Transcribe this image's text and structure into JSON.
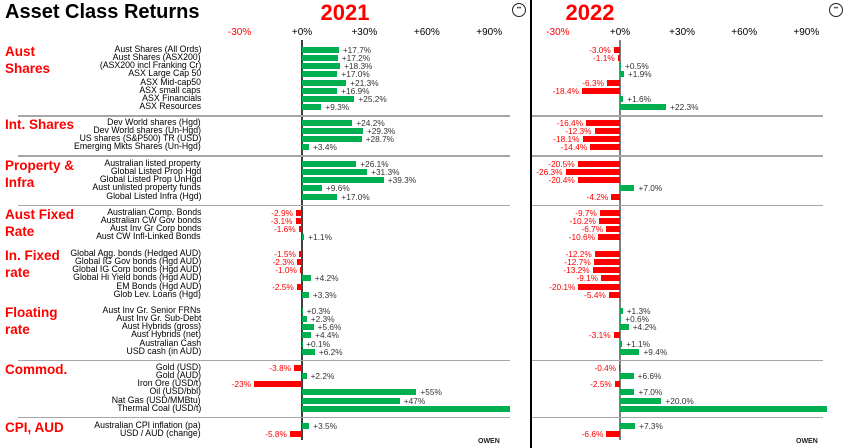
{
  "title": "Asset Class Returns",
  "footer": "OWEN",
  "icons": [
    "face-logo-icon"
  ],
  "colors": {
    "positive": "#00b050",
    "negative": "#ff0000",
    "group_label": "#ff0000"
  },
  "chart_data": {
    "type": "bar",
    "orientation": "horizontal",
    "panels": [
      {
        "year": "2021",
        "ticks": [
          "-30%",
          "+0%",
          "+30%",
          "+60%",
          "+90%"
        ],
        "xlim": [
          -43,
          100
        ]
      },
      {
        "year": "2022",
        "ticks": [
          "-30%",
          "+0%",
          "+30%",
          "+60%",
          "+90%"
        ],
        "xlim": [
          -43,
          100
        ]
      }
    ],
    "groups": [
      {
        "name": "Aust Shares",
        "separator_after": true,
        "items": [
          {
            "label": "Aust Shares (All Ords)",
            "values": [
              17.7,
              -3.0
            ],
            "labels": [
              "+17.7%",
              "-3.0%"
            ]
          },
          {
            "label": "Aust Shares (ASX200)",
            "values": [
              17.2,
              -1.1
            ],
            "labels": [
              "+17.2%",
              "-1.1%"
            ]
          },
          {
            "label": "(ASX200 incl Franking Cr)",
            "values": [
              18.3,
              0.5
            ],
            "labels": [
              "+18.3%",
              "+0.5%"
            ]
          },
          {
            "label": "ASX Large Cap 50",
            "values": [
              17.0,
              1.9
            ],
            "labels": [
              "+17.0%",
              "+1.9%"
            ]
          },
          {
            "label": "ASX Mid-cap50",
            "values": [
              21.3,
              -6.3
            ],
            "labels": [
              "+21.3%",
              "-6.3%"
            ]
          },
          {
            "label": "ASX small caps",
            "values": [
              16.9,
              -18.4
            ],
            "labels": [
              "+16.9%",
              "-18.4%"
            ]
          },
          {
            "label": "ASX Financials",
            "values": [
              25.2,
              1.6
            ],
            "labels": [
              "+25.2%",
              "+1.6%"
            ]
          },
          {
            "label": "ASX Resources",
            "values": [
              9.3,
              22.3
            ],
            "labels": [
              "+9.3%",
              "+22.3%"
            ]
          }
        ]
      },
      {
        "name": "Int. Shares",
        "separator_after": true,
        "items": [
          {
            "label": "Dev World shares (Hgd)",
            "values": [
              24.2,
              -16.4
            ],
            "labels": [
              "+24.2%",
              "-16.4%"
            ]
          },
          {
            "label": "Dev World shares (Un-Hgd)",
            "values": [
              29.3,
              -12.3
            ],
            "labels": [
              "+29.3%",
              "-12.3%"
            ]
          },
          {
            "label": "US shares (S&P500) TR (USD)",
            "values": [
              28.7,
              -18.1
            ],
            "labels": [
              "+28.7%",
              "-18.1%"
            ]
          },
          {
            "label": "Emerging Mkts Shares (Un-Hgd)",
            "values": [
              3.4,
              -14.4
            ],
            "labels": [
              "+3.4%",
              "-14.4%"
            ]
          }
        ]
      },
      {
        "name": "Property & Infra",
        "separator_after": true,
        "items": [
          {
            "label": "Australian listed property",
            "values": [
              26.1,
              -20.5
            ],
            "labels": [
              "+26.1%",
              "-20.5%"
            ]
          },
          {
            "label": "Global Listed Prop Hgd",
            "values": [
              31.3,
              -26.3
            ],
            "labels": [
              "+31.3%",
              "-26.3%"
            ]
          },
          {
            "label": "Global Listed Prop UnHgd",
            "values": [
              39.3,
              -20.4
            ],
            "labels": [
              "+39.3%",
              "-20.4%"
            ]
          },
          {
            "label": "Aust unlisted property funds",
            "values": [
              9.6,
              7.0
            ],
            "labels": [
              "+9.6%",
              "+7.0%"
            ]
          },
          {
            "label": "Global Listed Infra (Hgd)",
            "values": [
              17.0,
              -4.2
            ],
            "labels": [
              "+17.0%",
              "-4.2%"
            ]
          }
        ]
      },
      {
        "name": "Aust Fixed Rate",
        "separator_after": false,
        "items": [
          {
            "label": "Australian Comp. Bonds",
            "values": [
              -2.9,
              -9.7
            ],
            "labels": [
              "-2.9%",
              "-9.7%"
            ]
          },
          {
            "label": "Australian CW Gov bonds",
            "values": [
              -3.1,
              -10.2
            ],
            "labels": [
              "-3.1%",
              "-10.2%"
            ]
          },
          {
            "label": "Aust Inv Gr Corp bonds",
            "values": [
              -1.6,
              -6.7
            ],
            "labels": [
              "-1.6%",
              "-6.7%"
            ]
          },
          {
            "label": "Aust CW Infl-Linked Bonds",
            "values": [
              1.1,
              -10.6
            ],
            "labels": [
              "+1.1%",
              "-10.6%"
            ]
          }
        ]
      },
      {
        "name": "In. Fixed rate",
        "separator_after": false,
        "items": [
          {
            "label": "Global Agg. bonds (Hedged AUD)",
            "values": [
              -1.5,
              -12.2
            ],
            "labels": [
              "-1.5%",
              "-12.2%"
            ]
          },
          {
            "label": "Global IG Gov bonds (Hgd AUD)",
            "values": [
              -2.3,
              -12.7
            ],
            "labels": [
              "-2.3%",
              "-12.7%"
            ]
          },
          {
            "label": "Global IG Corp bonds (Hgd AUD)",
            "values": [
              -1.0,
              -13.2
            ],
            "labels": [
              "-1.0%",
              "-13.2%"
            ]
          },
          {
            "label": "Global Hi Yield bonds (Hgd AUD)",
            "values": [
              4.2,
              -9.1
            ],
            "labels": [
              "+4.2%",
              "-9.1%"
            ]
          },
          {
            "label": "EM Bonds (Hgd AUD)",
            "values": [
              -2.5,
              -20.1
            ],
            "labels": [
              "-2.5%",
              "-20.1%"
            ]
          },
          {
            "label": "Glob Lev. Loans (Hgd)",
            "values": [
              3.3,
              -5.4
            ],
            "labels": [
              "+3.3%",
              "-5.4%"
            ]
          }
        ]
      },
      {
        "name": "Floating rate",
        "separator_after": true,
        "items": [
          {
            "label": "Aust Inv Gr. Senior FRNs",
            "values": [
              0.3,
              1.3
            ],
            "labels": [
              "+0.3%",
              "+1.3%"
            ]
          },
          {
            "label": "Aust Inv Gr. Sub-Debt",
            "values": [
              2.3,
              0.6
            ],
            "labels": [
              "+2.3%",
              "+0.6%"
            ]
          },
          {
            "label": "Aust Hybrids (gross)",
            "values": [
              5.6,
              4.2
            ],
            "labels": [
              "+5.6%",
              "+4.2%"
            ]
          },
          {
            "label": "Aust Hybrids (net)",
            "values": [
              4.4,
              -3.1
            ],
            "labels": [
              "+4.4%",
              "-3.1%"
            ]
          },
          {
            "label": "Australian Cash",
            "values": [
              0.1,
              1.1
            ],
            "labels": [
              "+0.1%",
              "+1.1%"
            ]
          },
          {
            "label": "USD cash (in AUD)",
            "values": [
              6.2,
              9.4
            ],
            "labels": [
              "+6.2%",
              "+9.4%"
            ]
          }
        ]
      },
      {
        "name": "Commod.",
        "separator_after": true,
        "items": [
          {
            "label": "Gold (USD)",
            "values": [
              -3.8,
              -0.4
            ],
            "labels": [
              "-3.8%",
              "-0.4%"
            ]
          },
          {
            "label": "Gold (AUD)",
            "values": [
              2.2,
              6.6
            ],
            "labels": [
              "+2.2%",
              "+6.6%"
            ]
          },
          {
            "label": "Iron Ore (USD/t)",
            "values": [
              -23,
              -2.5
            ],
            "labels": [
              "-23%",
              "-2.5%"
            ]
          },
          {
            "label": "Oil (USD/bbl)",
            "values": [
              55,
              7.0
            ],
            "labels": [
              "+55%",
              "+7.0%"
            ]
          },
          {
            "label": "Nat Gas (USD/MMBtu)",
            "values": [
              47,
              20.0
            ],
            "labels": [
              "+47%",
              "+20.0%"
            ]
          },
          {
            "label": "Thermal Coal (USD/t)",
            "values": [
              100,
              100
            ],
            "labels": [
              "",
              ""
            ]
          }
        ]
      },
      {
        "name": "CPI, AUD",
        "separator_after": false,
        "items": [
          {
            "label": "Australian CPI inflation (pa)",
            "values": [
              3.5,
              7.3
            ],
            "labels": [
              "+3.5%",
              "+7.3%"
            ]
          },
          {
            "label": "USD / AUD (change)",
            "values": [
              -5.8,
              -6.6
            ],
            "labels": [
              "-5.8%",
              "-6.6%"
            ]
          }
        ]
      }
    ]
  }
}
